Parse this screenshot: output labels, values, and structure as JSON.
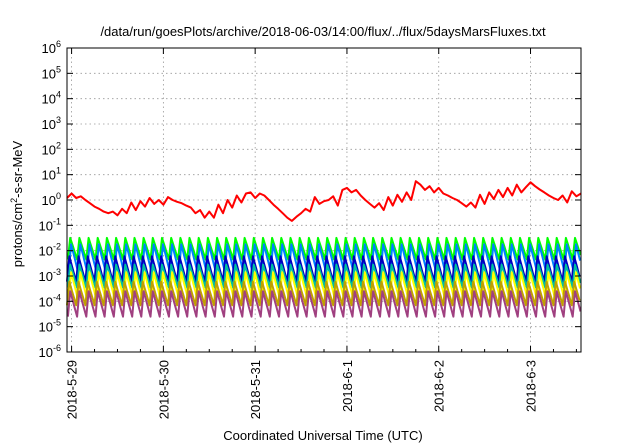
{
  "chart_data": {
    "type": "line",
    "title": "/data/run/goesPlots/archive/2018-06-03/14:00/flux/../flux/5daysMarsFluxes.txt",
    "xlabel": "Coordinated Universal Time (UTC)",
    "ylabel_parts": {
      "base": "protons/cm",
      "sup": "2",
      "rest": "-s-sr-MeV"
    },
    "x_ticks": [
      {
        "label": "2018-5-29",
        "day": 0
      },
      {
        "label": "2018-5-30",
        "day": 1
      },
      {
        "label": "2018-5-31",
        "day": 2
      },
      {
        "label": "2018-6-1",
        "day": 3
      },
      {
        "label": "2018-6-2",
        "day": 4
      },
      {
        "label": "2018-6-3",
        "day": 5
      }
    ],
    "xlim_days": [
      -0.05,
      5.55
    ],
    "y_scale": "log",
    "ylim_exp": [
      -6,
      6
    ],
    "y_ticks": [
      {
        "base": "10",
        "exp": "-6",
        "value": -6
      },
      {
        "base": "10",
        "exp": "-5",
        "value": -5
      },
      {
        "base": "10",
        "exp": "-4",
        "value": -4
      },
      {
        "base": "10",
        "exp": "-3",
        "value": -3
      },
      {
        "base": "10",
        "exp": "-2",
        "value": -2
      },
      {
        "base": "10",
        "exp": "-1",
        "value": -1
      },
      {
        "base": "10",
        "exp": "0",
        "value": 0
      },
      {
        "base": "10",
        "exp": "1",
        "value": 1
      },
      {
        "base": "10",
        "exp": "2",
        "value": 2
      },
      {
        "base": "10",
        "exp": "3",
        "value": 3
      },
      {
        "base": "10",
        "exp": "4",
        "value": 4
      },
      {
        "base": "10",
        "exp": "5",
        "value": 5
      },
      {
        "base": "10",
        "exp": "6",
        "value": 6
      }
    ],
    "grid": true,
    "series": [
      {
        "color": "#ff0000",
        "points": [
          [
            -0.05,
            1.2
          ],
          [
            0.0,
            1.8
          ],
          [
            0.05,
            1.2
          ],
          [
            0.1,
            1.4
          ],
          [
            0.15,
            1.0
          ],
          [
            0.2,
            0.75
          ],
          [
            0.25,
            0.55
          ],
          [
            0.3,
            0.45
          ],
          [
            0.35,
            0.35
          ],
          [
            0.4,
            0.3
          ],
          [
            0.45,
            0.35
          ],
          [
            0.5,
            0.25
          ],
          [
            0.55,
            0.45
          ],
          [
            0.6,
            0.3
          ],
          [
            0.65,
            0.8
          ],
          [
            0.7,
            0.4
          ],
          [
            0.75,
            0.9
          ],
          [
            0.8,
            0.55
          ],
          [
            0.85,
            1.2
          ],
          [
            0.9,
            0.7
          ],
          [
            0.95,
            1.0
          ],
          [
            1.0,
            0.65
          ],
          [
            1.05,
            1.3
          ],
          [
            1.1,
            1.0
          ],
          [
            1.15,
            0.85
          ],
          [
            1.2,
            0.75
          ],
          [
            1.25,
            0.6
          ],
          [
            1.3,
            0.5
          ],
          [
            1.35,
            0.3
          ],
          [
            1.4,
            0.4
          ],
          [
            1.45,
            0.2
          ],
          [
            1.5,
            0.35
          ],
          [
            1.55,
            0.2
          ],
          [
            1.6,
            0.65
          ],
          [
            1.65,
            0.3
          ],
          [
            1.7,
            1.0
          ],
          [
            1.75,
            0.5
          ],
          [
            1.8,
            1.5
          ],
          [
            1.85,
            0.8
          ],
          [
            1.9,
            1.8
          ],
          [
            1.95,
            2.0
          ],
          [
            2.0,
            1.2
          ],
          [
            2.05,
            1.8
          ],
          [
            2.1,
            1.5
          ],
          [
            2.15,
            1.0
          ],
          [
            2.2,
            0.65
          ],
          [
            2.25,
            0.45
          ],
          [
            2.3,
            0.3
          ],
          [
            2.35,
            0.2
          ],
          [
            2.4,
            0.15
          ],
          [
            2.45,
            0.22
          ],
          [
            2.5,
            0.3
          ],
          [
            2.55,
            0.45
          ],
          [
            2.6,
            0.35
          ],
          [
            2.65,
            1.3
          ],
          [
            2.7,
            0.7
          ],
          [
            2.75,
            0.9
          ],
          [
            2.8,
            1.0
          ],
          [
            2.85,
            1.4
          ],
          [
            2.9,
            0.6
          ],
          [
            2.95,
            2.5
          ],
          [
            3.0,
            3.0
          ],
          [
            3.05,
            2.0
          ],
          [
            3.1,
            2.5
          ],
          [
            3.15,
            1.5
          ],
          [
            3.2,
            1.0
          ],
          [
            3.25,
            0.7
          ],
          [
            3.3,
            0.5
          ],
          [
            3.35,
            0.75
          ],
          [
            3.4,
            0.4
          ],
          [
            3.45,
            1.3
          ],
          [
            3.5,
            0.6
          ],
          [
            3.55,
            1.6
          ],
          [
            3.6,
            0.85
          ],
          [
            3.65,
            2.0
          ],
          [
            3.7,
            1.0
          ],
          [
            3.75,
            5.5
          ],
          [
            3.8,
            4.0
          ],
          [
            3.85,
            2.5
          ],
          [
            3.9,
            3.5
          ],
          [
            3.95,
            2.0
          ],
          [
            4.0,
            3.0
          ],
          [
            4.05,
            1.8
          ],
          [
            4.1,
            1.5
          ],
          [
            4.15,
            1.2
          ],
          [
            4.2,
            1.0
          ],
          [
            4.25,
            0.75
          ],
          [
            4.3,
            0.55
          ],
          [
            4.35,
            0.8
          ],
          [
            4.4,
            0.5
          ],
          [
            4.45,
            1.6
          ],
          [
            4.5,
            0.7
          ],
          [
            4.55,
            2.0
          ],
          [
            4.6,
            1.1
          ],
          [
            4.65,
            2.5
          ],
          [
            4.7,
            1.3
          ],
          [
            4.75,
            3.0
          ],
          [
            4.8,
            1.5
          ],
          [
            4.85,
            4.0
          ],
          [
            4.9,
            2.0
          ],
          [
            4.95,
            3.2
          ],
          [
            5.0,
            5.0
          ],
          [
            5.05,
            3.5
          ],
          [
            5.1,
            2.6
          ],
          [
            5.15,
            2.0
          ],
          [
            5.2,
            1.5
          ],
          [
            5.25,
            1.2
          ],
          [
            5.3,
            1.0
          ],
          [
            5.35,
            1.5
          ],
          [
            5.4,
            0.8
          ],
          [
            5.45,
            2.2
          ],
          [
            5.5,
            1.4
          ],
          [
            5.55,
            1.8
          ]
        ]
      },
      {
        "color": "#00ff00",
        "period_days": 0.1,
        "low": 0.0045,
        "high": 0.032
      },
      {
        "color": "#0080ff",
        "period_days": 0.1,
        "low": 0.0015,
        "high": 0.018
      },
      {
        "color": "#0000c0",
        "period_days": 0.1,
        "low": 0.0006,
        "high": 0.006
      },
      {
        "color": "#00c0a0",
        "period_days": 0.1,
        "low": 0.00035,
        "high": 0.0028
      },
      {
        "color": "#ffff00",
        "period_days": 0.1,
        "low": 0.00012,
        "high": 0.0014
      },
      {
        "color": "#c0a000",
        "period_days": 0.1,
        "low": 7e-05,
        "high": 0.0006
      },
      {
        "color": "#a04080",
        "period_days": 0.1,
        "low": 2.5e-05,
        "high": 0.00025
      }
    ]
  }
}
